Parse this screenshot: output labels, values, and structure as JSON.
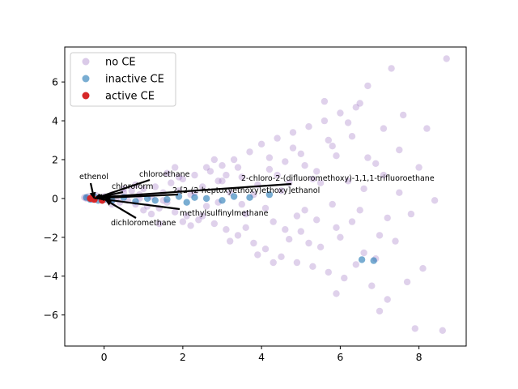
{
  "chart_data": {
    "type": "scatter",
    "title": "",
    "xlabel": "",
    "ylabel": "",
    "xlim": [
      -1.0,
      9.2
    ],
    "ylim": [
      -7.6,
      7.8
    ],
    "x_ticks": [
      0,
      2,
      4,
      6,
      8
    ],
    "y_ticks": [
      -6,
      -4,
      -2,
      0,
      2,
      4,
      6
    ],
    "grid": false,
    "legend_position": "top-left",
    "series": [
      {
        "name": "no CE",
        "color": "#9467bd",
        "alpha": 0.3,
        "points": [
          [
            -0.5,
            0.05
          ],
          [
            -0.45,
            0.0
          ],
          [
            -0.4,
            0.1
          ],
          [
            -0.3,
            -0.05
          ],
          [
            -0.2,
            0.15
          ],
          [
            -0.1,
            0.0
          ],
          [
            0.0,
            0.1
          ],
          [
            0.1,
            -0.1
          ],
          [
            0.2,
            0.2
          ],
          [
            0.3,
            0.0
          ],
          [
            0.4,
            -0.2
          ],
          [
            0.5,
            0.3
          ],
          [
            0.6,
            -0.1
          ],
          [
            0.7,
            0.4
          ],
          [
            0.8,
            -0.3
          ],
          [
            0.9,
            0.2
          ],
          [
            1.0,
            0.5
          ],
          [
            1.1,
            -0.4
          ],
          [
            1.2,
            0.1
          ],
          [
            1.3,
            0.6
          ],
          [
            1.4,
            -0.5
          ],
          [
            1.5,
            0.3
          ],
          [
            1.6,
            -0.2
          ],
          [
            1.7,
            0.8
          ],
          [
            1.8,
            -0.7
          ],
          [
            1.9,
            0.4
          ],
          [
            2.0,
            1.0
          ],
          [
            2.1,
            -0.9
          ],
          [
            2.2,
            0.2
          ],
          [
            2.3,
            1.2
          ],
          [
            2.4,
            -1.1
          ],
          [
            2.5,
            0.6
          ],
          [
            2.6,
            -0.4
          ],
          [
            2.7,
            1.4
          ],
          [
            2.8,
            -1.3
          ],
          [
            2.9,
            0.9
          ],
          [
            3.0,
            1.7
          ],
          [
            3.1,
            -1.6
          ],
          [
            3.2,
            0.3
          ],
          [
            3.3,
            2.0
          ],
          [
            3.4,
            -1.9
          ],
          [
            3.5,
            1.1
          ],
          [
            3.6,
            -0.8
          ],
          [
            3.7,
            2.4
          ],
          [
            3.8,
            -2.3
          ],
          [
            3.9,
            0.7
          ],
          [
            4.0,
            2.8
          ],
          [
            4.1,
            -2.6
          ],
          [
            4.2,
            1.5
          ],
          [
            4.3,
            -1.2
          ],
          [
            4.4,
            3.1
          ],
          [
            4.5,
            -3.0
          ],
          [
            4.6,
            1.9
          ],
          [
            4.7,
            -2.1
          ],
          [
            4.8,
            3.4
          ],
          [
            4.9,
            -3.3
          ],
          [
            5.0,
            2.3
          ],
          [
            5.1,
            -0.6
          ],
          [
            5.2,
            3.7
          ],
          [
            5.3,
            -3.5
          ],
          [
            5.4,
            1.4
          ],
          [
            5.5,
            -2.5
          ],
          [
            5.6,
            4.0
          ],
          [
            5.7,
            -3.8
          ],
          [
            5.8,
            2.7
          ],
          [
            5.9,
            -1.5
          ],
          [
            6.0,
            4.4
          ],
          [
            6.1,
            -4.1
          ],
          [
            6.2,
            0.9
          ],
          [
            6.3,
            3.2
          ],
          [
            6.4,
            -3.4
          ],
          [
            6.5,
            4.9
          ],
          [
            6.6,
            -2.8
          ],
          [
            6.7,
            5.8
          ],
          [
            6.8,
            -4.5
          ],
          [
            6.9,
            1.8
          ],
          [
            7.0,
            -5.8
          ],
          [
            7.1,
            3.6
          ],
          [
            7.2,
            -5.2
          ],
          [
            7.3,
            6.7
          ],
          [
            7.4,
            -2.2
          ],
          [
            7.5,
            2.5
          ],
          [
            7.6,
            4.3
          ],
          [
            7.7,
            -4.3
          ],
          [
            7.9,
            -6.7
          ],
          [
            8.0,
            1.6
          ],
          [
            8.1,
            -3.6
          ],
          [
            8.2,
            3.6
          ],
          [
            8.4,
            -0.1
          ],
          [
            8.6,
            -6.8
          ],
          [
            8.7,
            7.2
          ],
          [
            5.6,
            5.0
          ],
          [
            6.4,
            4.7
          ],
          [
            5.9,
            -4.9
          ],
          [
            4.3,
            -3.3
          ],
          [
            3.9,
            -2.9
          ],
          [
            2.8,
            2.0
          ],
          [
            1.8,
            1.6
          ],
          [
            1.4,
            -1.3
          ],
          [
            4.8,
            2.6
          ],
          [
            5.3,
            1.0
          ],
          [
            5.8,
            -0.3
          ],
          [
            6.6,
            0.5
          ],
          [
            7.2,
            -1.0
          ],
          [
            6.9,
            -3.1
          ],
          [
            6.2,
            3.9
          ],
          [
            7.1,
            1.2
          ],
          [
            6.0,
            -2.0
          ],
          [
            5.0,
            -1.7
          ],
          [
            4.5,
            0.4
          ],
          [
            3.5,
            -0.3
          ],
          [
            3.0,
            0.9
          ],
          [
            2.5,
            -0.9
          ],
          [
            1.9,
            1.1
          ],
          [
            1.2,
            -0.8
          ],
          [
            0.8,
            0.7
          ],
          [
            4.9,
            -0.9
          ],
          [
            5.5,
            0.8
          ],
          [
            3.4,
            1.6
          ],
          [
            2.2,
            -1.4
          ],
          [
            1.6,
            1.3
          ],
          [
            2.0,
            -1.2
          ],
          [
            3.6,
            -1.5
          ],
          [
            4.2,
            2.1
          ],
          [
            4.7,
            0.8
          ],
          [
            5.2,
            -2.3
          ],
          [
            6.3,
            -1.2
          ],
          [
            6.7,
            2.1
          ],
          [
            5.7,
            3.0
          ],
          [
            3.2,
            -2.2
          ],
          [
            2.6,
            1.6
          ],
          [
            1.0,
            -0.6
          ],
          [
            0.5,
            0.5
          ],
          [
            0.2,
            -0.3
          ],
          [
            3.8,
            0.2
          ],
          [
            4.1,
            -0.5
          ],
          [
            4.4,
            1.2
          ],
          [
            5.4,
            -1.1
          ],
          [
            6.5,
            -0.6
          ],
          [
            7.0,
            -1.9
          ],
          [
            7.5,
            0.3
          ],
          [
            7.8,
            -0.8
          ],
          [
            2.9,
            -0.2
          ],
          [
            2.3,
            0.3
          ],
          [
            1.5,
            -0.1
          ],
          [
            0.9,
            0.0
          ],
          [
            4.6,
            -1.6
          ],
          [
            3.1,
            1.2
          ],
          [
            5.1,
            1.7
          ],
          [
            5.9,
            2.2
          ]
        ]
      },
      {
        "name": "inactive CE",
        "color": "#1f77b4",
        "alpha": 0.6,
        "points": [
          [
            -0.45,
            0.05
          ],
          [
            -0.35,
            -0.05
          ],
          [
            -0.25,
            0.08
          ],
          [
            -0.15,
            -0.1
          ],
          [
            0.0,
            -0.05
          ],
          [
            0.2,
            -0.1
          ],
          [
            0.5,
            0.05
          ],
          [
            0.8,
            -0.15
          ],
          [
            1.1,
            0.0
          ],
          [
            1.3,
            -0.1
          ],
          [
            1.6,
            -0.05
          ],
          [
            1.9,
            0.1
          ],
          [
            2.1,
            -0.2
          ],
          [
            2.3,
            0.05
          ],
          [
            2.6,
            0.0
          ],
          [
            3.0,
            -0.1
          ],
          [
            3.3,
            0.1
          ],
          [
            3.7,
            0.05
          ],
          [
            4.2,
            0.2
          ],
          [
            6.55,
            -3.15
          ],
          [
            6.85,
            -3.2
          ]
        ]
      },
      {
        "name": "active CE",
        "color": "#d62728",
        "alpha": 1.0,
        "points": [
          [
            -0.35,
            0.0
          ],
          [
            -0.3,
            0.05
          ],
          [
            -0.25,
            -0.05
          ],
          [
            -0.05,
            -0.1
          ]
        ]
      }
    ],
    "annotations": [
      {
        "text": "ethenol",
        "point": [
          -0.32,
          0.02
        ],
        "anchor": "ethenol"
      },
      {
        "text": "chloroethane",
        "point": [
          -0.3,
          0.0
        ],
        "anchor": "chloroethane"
      },
      {
        "text": "chloroform",
        "point": [
          -0.28,
          0.02
        ],
        "anchor": "chloroform"
      },
      {
        "text": "2-chloro-2-(difluoromethoxy)-1,1,1-trifluoroethane",
        "point": [
          -0.25,
          0.05
        ],
        "anchor": "halothane"
      },
      {
        "text": "2-[2-(2-heptoxyethoxy)ethoxy]ethanol",
        "point": [
          -0.2,
          0.02
        ],
        "anchor": "glycol"
      },
      {
        "text": "methylsulfinylmethane",
        "point": [
          -0.05,
          -0.05
        ],
        "anchor": "dmso"
      },
      {
        "text": "dichloromethane",
        "point": [
          -0.02,
          -0.08
        ],
        "anchor": "dcm"
      }
    ]
  }
}
